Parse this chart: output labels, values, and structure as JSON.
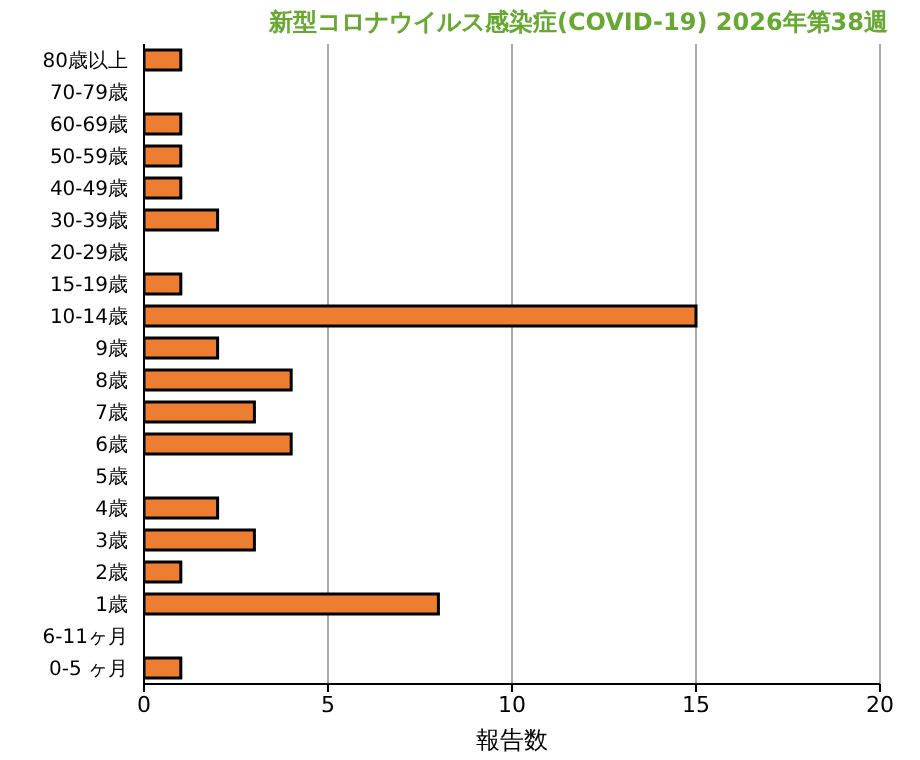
{
  "chart_data": {
    "type": "bar",
    "orientation": "horizontal",
    "title": "新型コロナウイルス感染症(COVID-19) 2026年第38週",
    "xlabel": "報告数",
    "categories": [
      "80歳以上",
      "70-79歳",
      "60-69歳",
      "50-59歳",
      "40-49歳",
      "30-39歳",
      "20-29歳",
      "15-19歳",
      "10-14歳",
      "9歳",
      "8歳",
      "7歳",
      "6歳",
      "5歳",
      "4歳",
      "3歳",
      "2歳",
      "1歳",
      "6-11ヶ月",
      "0-5 ヶ月"
    ],
    "values": [
      1,
      0,
      1,
      1,
      1,
      2,
      0,
      1,
      15,
      2,
      4,
      3,
      4,
      0,
      2,
      3,
      1,
      8,
      0,
      1
    ],
    "color": "#ed7d31",
    "xlim": [
      0,
      20
    ],
    "xticks": [
      0,
      5,
      10,
      15,
      20
    ],
    "grid": "x"
  }
}
